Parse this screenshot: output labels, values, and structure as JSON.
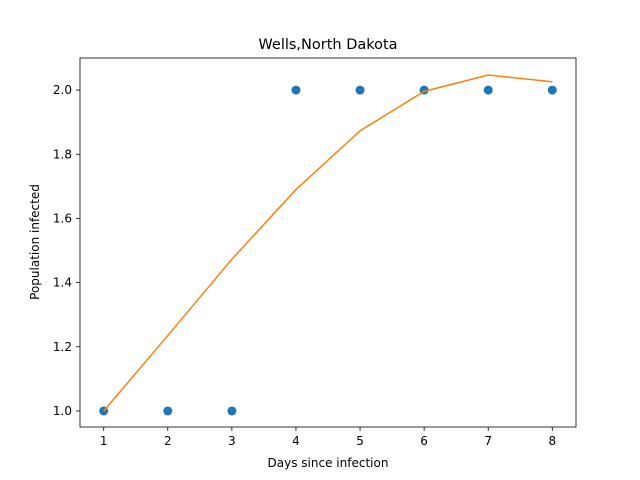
{
  "chart_data": {
    "type": "line",
    "title": "Wells,North Dakota",
    "xlabel": "Days since infection",
    "ylabel": "Population infected",
    "xlim": [
      0.63,
      8.37
    ],
    "ylim": [
      0.95,
      2.1
    ],
    "xticks": [
      1,
      2,
      3,
      4,
      5,
      6,
      7,
      8
    ],
    "yticks": [
      1.0,
      1.2,
      1.4,
      1.6,
      1.8,
      2.0
    ],
    "ytick_labels": [
      "1.0",
      "1.2",
      "1.4",
      "1.6",
      "1.8",
      "2.0"
    ],
    "grid": false,
    "series": [
      {
        "kind": "scatter",
        "color": "#1f77b4",
        "x": [
          1,
          2,
          3,
          4,
          5,
          6,
          7,
          8
        ],
        "y": [
          1.0,
          1.0,
          1.0,
          2.0,
          2.0,
          2.0,
          2.0,
          2.0
        ]
      },
      {
        "kind": "line",
        "color": "#ff7f0e",
        "x": [
          1,
          2,
          3,
          4,
          5,
          6,
          7,
          8
        ],
        "y": [
          1.0,
          1.235,
          1.473,
          1.69,
          1.873,
          1.996,
          2.047,
          2.026
        ]
      }
    ]
  }
}
